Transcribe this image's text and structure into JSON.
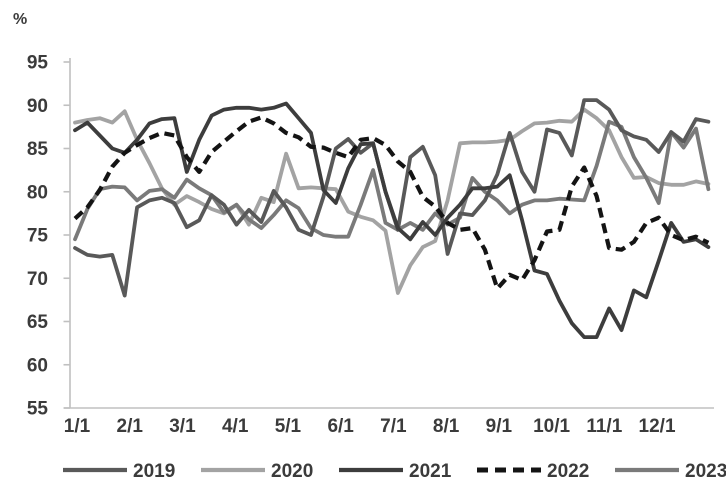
{
  "figure": {
    "unit_label": "%"
  },
  "chart_data": {
    "type": "line",
    "title": "",
    "xlabel": "",
    "ylabel": "%",
    "ylim": [
      55,
      95
    ],
    "y_ticks": [
      55,
      60,
      65,
      70,
      75,
      80,
      85,
      90,
      95
    ],
    "x_tick_labels": [
      "1/1",
      "2/1",
      "3/1",
      "4/1",
      "5/1",
      "6/1",
      "7/1",
      "8/1",
      "9/1",
      "10/1",
      "11/1",
      "12/1"
    ],
    "x_unit": "weekly (52 points per year, Jan 1 - Dec 29)",
    "grid": false,
    "legend_position": "bottom",
    "axis_color": "#c0c0c0",
    "text_color": "#3b3b3b",
    "series": [
      {
        "name": "2019",
        "color": "#595959",
        "style": "solid",
        "values": [
          73.5,
          72.7,
          72.5,
          72.7,
          68.0,
          78.2,
          79.0,
          79.3,
          78.7,
          75.9,
          76.7,
          79.6,
          78.5,
          76.2,
          77.9,
          76.5,
          80.1,
          78.2,
          75.6,
          75.0,
          79.4,
          85.0,
          86.1,
          84.5,
          85.6,
          80.0,
          75.6,
          84.0,
          85.2,
          81.9,
          72.8,
          77.5,
          77.3,
          79.0,
          82.0,
          86.8,
          82.3,
          80.0,
          87.2,
          86.8,
          84.2,
          90.6,
          90.6,
          89.5,
          87.1,
          86.4,
          86.0,
          84.6,
          86.9,
          85.8,
          88.4,
          88.1
        ]
      },
      {
        "name": "2020",
        "color": "#a3a3a3",
        "style": "solid",
        "values": [
          88.0,
          88.3,
          88.5,
          88.0,
          89.3,
          86.0,
          83.3,
          80.4,
          78.5,
          79.5,
          78.8,
          78.0,
          77.5,
          78.5,
          76.2,
          79.3,
          78.8,
          84.4,
          80.4,
          80.5,
          80.4,
          80.3,
          77.7,
          77.1,
          76.7,
          75.5,
          68.3,
          71.5,
          73.6,
          74.3,
          79.0,
          85.6,
          85.7,
          85.7,
          85.8,
          86.0,
          87.0,
          87.9,
          88.0,
          88.2,
          88.1,
          89.5,
          88.5,
          87.1,
          84.0,
          81.6,
          81.7,
          81.0,
          80.8,
          80.8,
          81.2,
          80.9
        ]
      },
      {
        "name": "2021",
        "color": "#3d3d3d",
        "style": "solid",
        "values": [
          87.1,
          88.0,
          86.5,
          85.0,
          84.5,
          86.0,
          87.9,
          88.4,
          88.5,
          82.3,
          86.0,
          88.8,
          89.5,
          89.7,
          89.7,
          89.5,
          89.7,
          90.2,
          88.5,
          86.8,
          80.2,
          78.7,
          82.7,
          85.5,
          85.6,
          80.0,
          75.8,
          74.5,
          76.5,
          75.0,
          77.0,
          78.5,
          80.4,
          80.4,
          80.6,
          81.9,
          76.7,
          70.9,
          70.5,
          67.4,
          64.8,
          63.2,
          63.2,
          66.5,
          64.0,
          68.6,
          67.8,
          72.0,
          76.4,
          74.2,
          74.5,
          73.6
        ]
      },
      {
        "name": "2022",
        "color": "#141414",
        "style": "dashed",
        "values": [
          76.9,
          78.2,
          80.2,
          82.9,
          84.5,
          85.4,
          86.2,
          86.8,
          86.5,
          84.0,
          82.3,
          84.6,
          85.8,
          87.0,
          88.1,
          88.6,
          87.9,
          86.8,
          86.3,
          85.2,
          85.1,
          84.5,
          84.0,
          86.0,
          86.2,
          85.4,
          83.5,
          82.3,
          79.4,
          78.3,
          76.4,
          75.6,
          75.8,
          73.3,
          68.8,
          70.4,
          69.8,
          72.1,
          75.4,
          75.6,
          80.6,
          82.8,
          79.5,
          73.5,
          73.3,
          74.2,
          76.4,
          77.0,
          75.0,
          74.4,
          74.8,
          74.1
        ]
      },
      {
        "name": "2023",
        "color": "#7a7a7a",
        "style": "solid",
        "values": [
          74.5,
          78.0,
          80.3,
          80.6,
          80.5,
          79.0,
          80.1,
          80.3,
          79.3,
          81.4,
          80.4,
          79.6,
          77.6,
          78.5,
          76.8,
          75.8,
          77.3,
          79.0,
          78.1,
          75.8,
          75.0,
          74.8,
          74.8,
          78.5,
          82.5,
          76.4,
          75.6,
          76.4,
          75.6,
          77.5,
          76.2,
          77.0,
          81.6,
          80.0,
          79.0,
          77.5,
          78.5,
          79.0,
          79.0,
          79.2,
          79.1,
          79.0,
          83.0,
          88.1,
          87.5,
          84.0,
          81.6,
          78.7,
          86.9,
          85.1,
          87.3,
          80.3
        ]
      }
    ],
    "legend_entries": [
      "2019",
      "2020",
      "2021",
      "2022",
      "2023"
    ]
  }
}
